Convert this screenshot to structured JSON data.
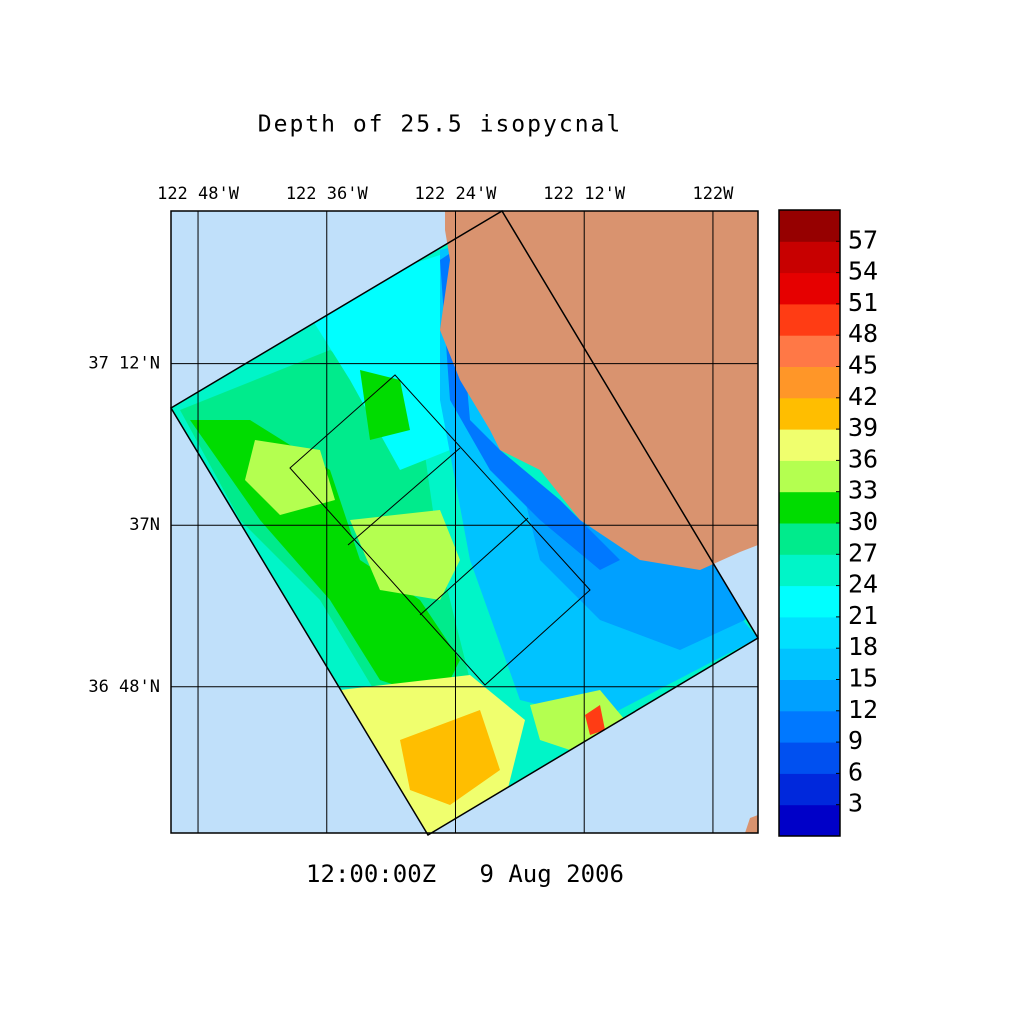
{
  "title": "Depth of 25.5 isopycnal",
  "time_label": "12:00:00Z   9 Aug 2006",
  "map": {
    "xlim": [
      -122.842,
      -121.93
    ],
    "ylim": [
      36.619,
      37.389
    ],
    "xticks": [
      {
        "value": -122.8,
        "label": "122 48'W"
      },
      {
        "value": -122.6,
        "label": "122 36'W"
      },
      {
        "value": -122.4,
        "label": "122 24'W"
      },
      {
        "value": -122.2,
        "label": "122 12'W"
      },
      {
        "value": -122.0,
        "label": "122W"
      }
    ],
    "yticks": [
      {
        "value": 36.8,
        "label": "36 48'N"
      },
      {
        "value": 37.0,
        "label": "37N"
      },
      {
        "value": 37.2,
        "label": "37 12'N"
      }
    ]
  },
  "colorbar": {
    "lim": [
      0,
      60
    ],
    "ticks": [
      3,
      6,
      9,
      12,
      15,
      18,
      21,
      24,
      27,
      30,
      33,
      36,
      39,
      42,
      45,
      48,
      51,
      54,
      57
    ],
    "colors": [
      "#0000c8",
      "#0028dc",
      "#0050f0",
      "#0078ff",
      "#00a0ff",
      "#00c3ff",
      "#00e1ff",
      "#00ffff",
      "#00f5c8",
      "#00eb8c",
      "#00dc00",
      "#b4ff50",
      "#f0ff6e",
      "#ffbe00",
      "#ff9628",
      "#ff7846",
      "#ff3c14",
      "#e60000",
      "#c80000",
      "#960000"
    ]
  }
}
